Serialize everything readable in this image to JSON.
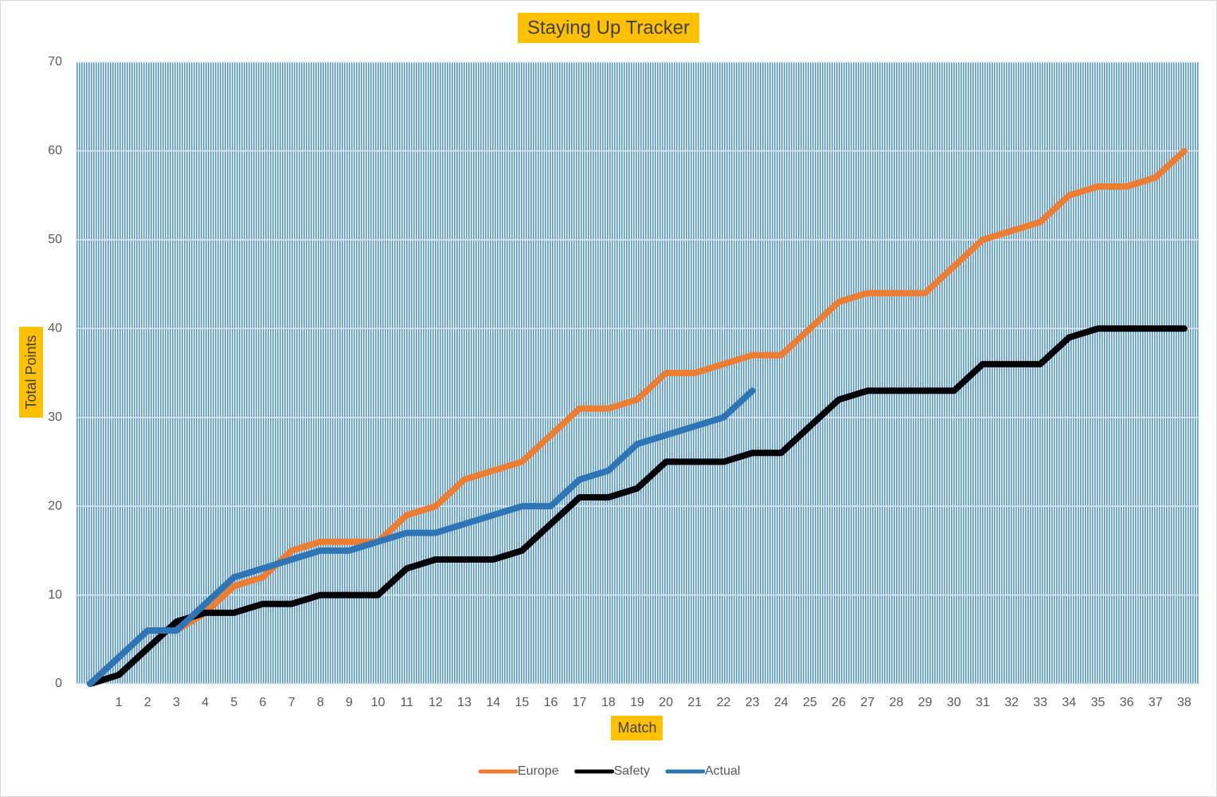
{
  "chart_data": {
    "type": "line",
    "title": "Staying Up Tracker",
    "x_label": "Match",
    "y_label": "Total Points",
    "categories": [
      null,
      "1",
      "2",
      "3",
      "4",
      "5",
      "6",
      "7",
      "8",
      "9",
      "10",
      "11",
      "12",
      "13",
      "14",
      "15",
      "16",
      "17",
      "18",
      "19",
      "20",
      "21",
      "22",
      "23",
      "24",
      "25",
      "26",
      "27",
      "28",
      "29",
      "30",
      "31",
      "32",
      "33",
      "34",
      "35",
      "36",
      "37",
      "38"
    ],
    "series": [
      {
        "name": "Europe",
        "color": "#ed7d31",
        "values": [
          0,
          3,
          6,
          6,
          8,
          11,
          12,
          15,
          16,
          16,
          16,
          19,
          20,
          23,
          24,
          25,
          28,
          31,
          31,
          32,
          35,
          35,
          36,
          37,
          37,
          40,
          43,
          44,
          44,
          44,
          47,
          50,
          51,
          52,
          55,
          56,
          56,
          57,
          60
        ]
      },
      {
        "name": "Safety",
        "color": "#000000",
        "values": [
          0,
          1,
          4,
          7,
          8,
          8,
          9,
          9,
          10,
          10,
          10,
          13,
          14,
          14,
          14,
          15,
          18,
          21,
          21,
          22,
          25,
          25,
          25,
          26,
          26,
          29,
          32,
          33,
          33,
          33,
          33,
          36,
          36,
          36,
          39,
          40,
          40,
          40,
          40
        ]
      },
      {
        "name": "Actual",
        "color": "#2e75b6",
        "values": [
          0,
          3,
          6,
          6,
          9,
          12,
          13,
          14,
          15,
          15,
          16,
          17,
          17,
          18,
          19,
          20,
          20,
          23,
          24,
          27,
          28,
          29,
          30,
          33,
          null,
          null,
          null,
          null,
          null,
          null,
          null,
          null,
          null,
          null,
          null,
          null,
          null,
          null,
          null
        ]
      }
    ],
    "ylim": [
      0,
      70
    ],
    "yticks": [
      0,
      10,
      20,
      30,
      40,
      50,
      60,
      70
    ],
    "grid": true,
    "legend": "bottom"
  }
}
